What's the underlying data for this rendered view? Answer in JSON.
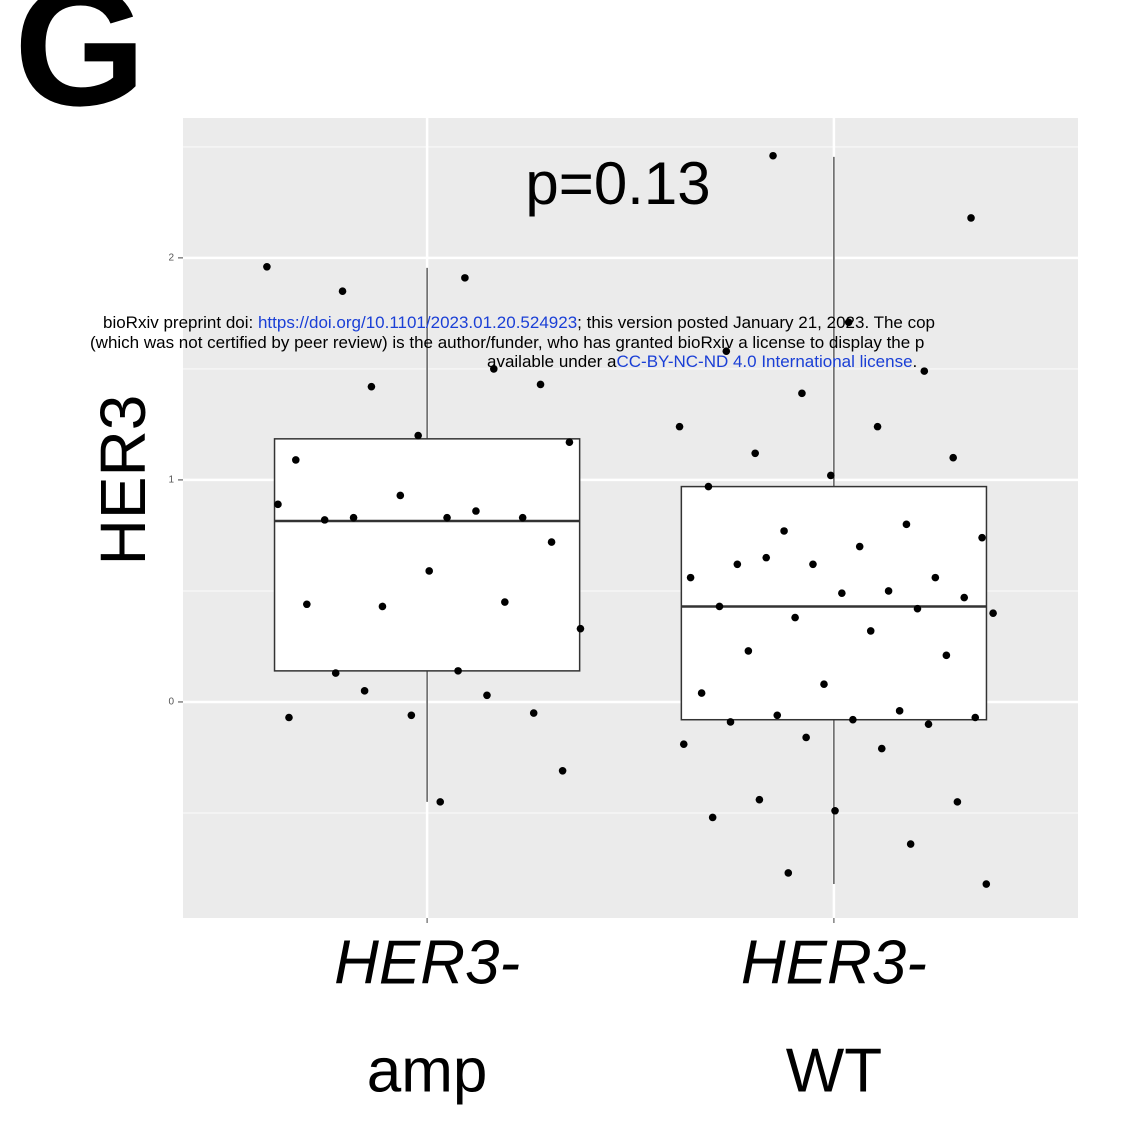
{
  "panel_label": "G",
  "chart_data": {
    "type": "box",
    "title": "p=0.13",
    "y_label": "HER3",
    "categories": [
      [
        "HER3-",
        "amp"
      ],
      [
        "HER3-",
        "WT"
      ]
    ],
    "boxes": [
      {
        "whisker_low": -0.45,
        "q1": 0.14,
        "median": 0.815,
        "q3": 1.185,
        "whisker_high": 1.955
      },
      {
        "whisker_low": -0.82,
        "q1": -0.08,
        "median": 0.43,
        "q3": 0.97,
        "whisker_high": 2.455
      }
    ],
    "points": [
      [
        1.96,
        1.91,
        1.85,
        1.43,
        1.2,
        1.09,
        1.5,
        1.42,
        1.17,
        0.83,
        0.82,
        0.83,
        0.93,
        0.89,
        0.86,
        0.83,
        0.72,
        0.59,
        0.44,
        0.45,
        0.43,
        0.33,
        0.14,
        0.13,
        -0.05,
        -0.06,
        -0.07,
        0.03,
        0.05,
        -0.31,
        -0.45
      ],
      [
        2.46,
        2.18,
        1.71,
        1.58,
        1.49,
        1.39,
        1.24,
        1.24,
        1.12,
        1.1,
        1.02,
        0.97,
        0.8,
        0.77,
        0.74,
        0.7,
        0.62,
        0.56,
        0.62,
        0.56,
        0.5,
        0.65,
        0.47,
        0.49,
        0.43,
        0.42,
        0.38,
        0.4,
        0.32,
        0.23,
        0.21,
        0.08,
        0.04,
        -0.04,
        -0.06,
        -0.07,
        -0.08,
        -0.09,
        -0.1,
        -0.16,
        -0.19,
        -0.21,
        -0.44,
        -0.45,
        -0.49,
        -0.52,
        -0.64,
        -0.77,
        -0.82
      ]
    ],
    "ylim": [
      -0.973,
      2.63
    ],
    "yticks": [
      0,
      1,
      2
    ],
    "minor_grid": [
      -0.5,
      0.5,
      1.5,
      2.5
    ],
    "grid": true,
    "box_color": "#ffffff",
    "point_color": "#000000",
    "panel_color": "#ebebeb"
  },
  "watermark": {
    "line1": {
      "before": "bioRxiv preprint doi: ",
      "link": "https://doi.org/10.1101/2023.01.20.524923",
      "after": "; this version posted January 21, 2023. The cop"
    },
    "line2": "(which was not certified by peer review) is the author/funder, who has granted bioRxiv a license to display the p",
    "line3": {
      "before": "available under a",
      "link": "CC-BY-NC-ND 4.0 International license",
      "after": "."
    }
  }
}
